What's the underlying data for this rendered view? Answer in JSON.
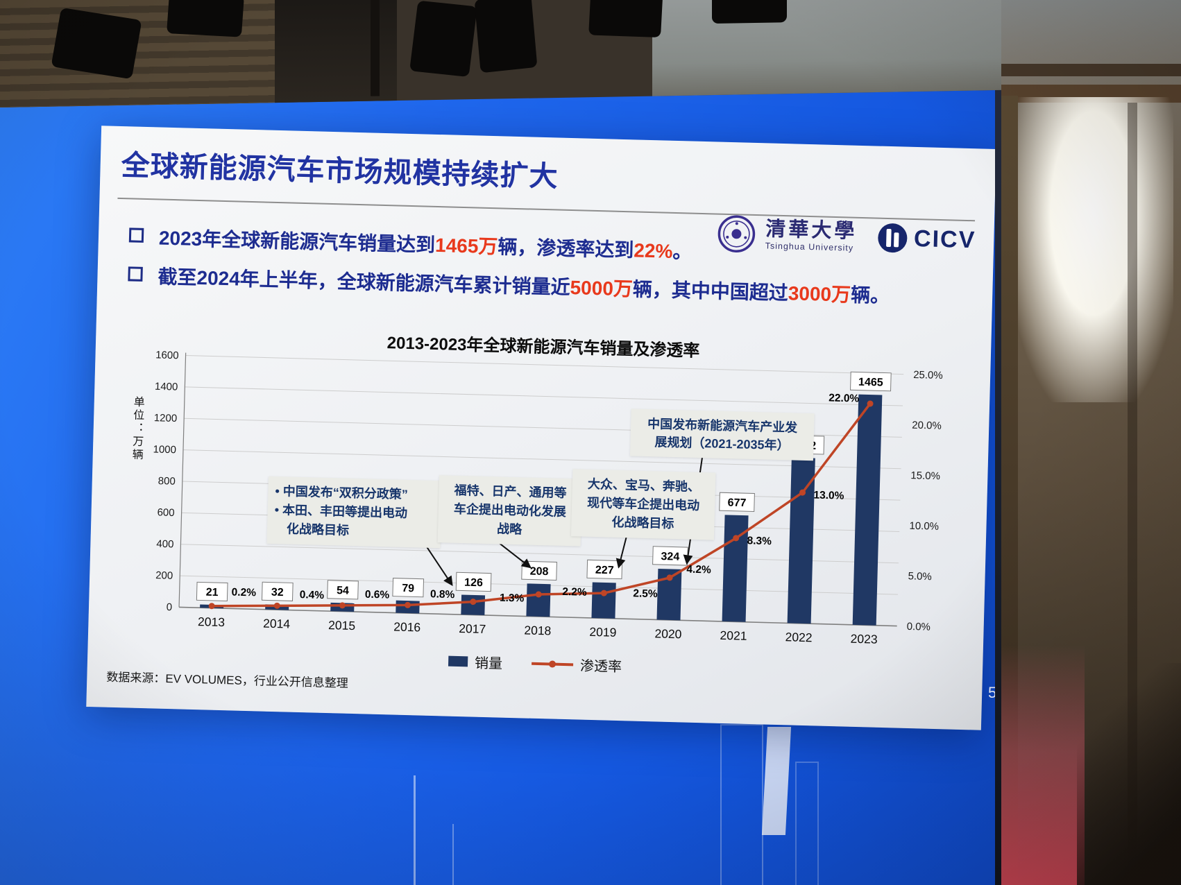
{
  "scene": {
    "page_number": "5"
  },
  "slide": {
    "title": "全球新能源汽车市场规模持续扩大",
    "logos": {
      "tsinghua_cn": "清華大學",
      "tsinghua_en": "Tsinghua University",
      "cicv": "CICV"
    },
    "bullets": [
      {
        "parts": [
          {
            "t": "2023年全球新能源汽车销量达到",
            "hl": false
          },
          {
            "t": "1465万",
            "hl": true
          },
          {
            "t": "辆，渗透率达到",
            "hl": false
          },
          {
            "t": "22%",
            "hl": true
          },
          {
            "t": "。",
            "hl": false
          }
        ]
      },
      {
        "parts": [
          {
            "t": "截至2024年上半年，全球新能源汽车累计销量近",
            "hl": false
          },
          {
            "t": "5000万",
            "hl": true
          },
          {
            "t": "辆，其中中国超过",
            "hl": false
          },
          {
            "t": "3000万",
            "hl": true
          },
          {
            "t": "辆。",
            "hl": false
          }
        ]
      }
    ],
    "source": "数据来源：EV VOLUMES，行业公开信息整理"
  },
  "chart_data": {
    "type": "bar",
    "combo": "bar+line",
    "title": "2013-2023年全球新能源汽车销量及渗透率",
    "categories": [
      "2013",
      "2014",
      "2015",
      "2016",
      "2017",
      "2018",
      "2019",
      "2020",
      "2021",
      "2022",
      "2023"
    ],
    "series": [
      {
        "name": "销量",
        "type": "bar",
        "axis": "left",
        "values": [
          21,
          32,
          54,
          79,
          126,
          208,
          227,
          324,
          677,
          1052,
          1465
        ],
        "color": "#203864"
      },
      {
        "name": "渗透率",
        "type": "line",
        "axis": "right",
        "values": [
          0.2,
          0.4,
          0.6,
          0.8,
          1.3,
          2.2,
          2.5,
          4.2,
          8.3,
          13.0,
          22.0
        ],
        "labels": [
          "0.2%",
          "0.4%",
          "0.6%",
          "0.8%",
          "1.3%",
          "2.2%",
          "2.5%",
          "4.2%",
          "8.3%",
          "13.0%",
          "22.0%"
        ],
        "color": "#bf4526"
      }
    ],
    "left_axis": {
      "title": "单位：万辆",
      "min": 0,
      "max": 1600,
      "step": 200
    },
    "right_axis": {
      "min": 0,
      "max": 25,
      "step": 5,
      "tick_labels": [
        "0.0%",
        "5.0%",
        "10.0%",
        "15.0%",
        "20.0%",
        "25.0%"
      ]
    },
    "grid": true,
    "legend_position": "bottom",
    "legend": [
      {
        "label": "销量",
        "swatch": "bar"
      },
      {
        "label": "渗透率",
        "swatch": "line"
      }
    ],
    "annotations": [
      {
        "text": "• 中国发布“双积分政策”\n• 本田、丰田等提出电动\n　化战略目标",
        "target": "2017"
      },
      {
        "text": "福特、日产、通用等\n车企提出电动化发展\n战略",
        "target": "2018"
      },
      {
        "text": "大众、宝马、奔驰、\n现代等车企提出电动\n化战略目标",
        "target": "2019"
      },
      {
        "text": "中国发布新能源汽车产业发\n展规划（2021-2035年）",
        "target": "2020"
      }
    ]
  }
}
